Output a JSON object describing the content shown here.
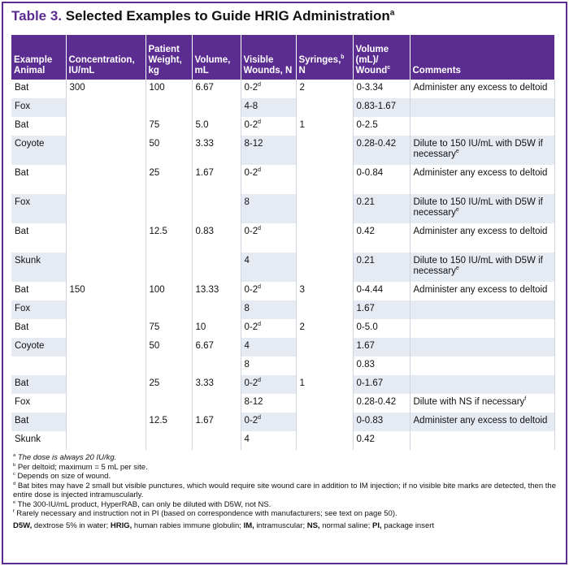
{
  "title": {
    "label": "Table 3.",
    "text": "Selected Examples to Guide HRIG Administration",
    "sup": "a"
  },
  "table": {
    "columns": [
      "animal",
      "concentration",
      "weight",
      "volume",
      "wounds",
      "syringes",
      "vol_wound",
      "comments"
    ],
    "header": [
      {
        "text": "Example Animal"
      },
      {
        "text": "Concentration, IU/mL"
      },
      {
        "text": "Patient Weight, kg"
      },
      {
        "text": "Volume, mL"
      },
      {
        "text": "Visible Wounds, N"
      },
      {
        "text": "Syringes,",
        "sup": "b",
        "text2": "N"
      },
      {
        "text": "Volume (mL)/ Wound",
        "sup": "c"
      },
      {
        "text": "Comments"
      }
    ],
    "rows": [
      {
        "animal": "Bat",
        "concentration": "300",
        "weight": "100",
        "volume": "6.67",
        "wounds": {
          "text": "0-2",
          "sup": "d"
        },
        "syringes": "2",
        "vol_wound": "0-3.34",
        "comments": {
          "text": "Administer any excess to deltoid"
        }
      },
      {
        "animal": "Fox",
        "wounds": "4-8",
        "vol_wound": "0.83-1.67"
      },
      {
        "animal": "Bat",
        "weight": "75",
        "volume": "5.0",
        "wounds": {
          "text": "0-2",
          "sup": "d"
        },
        "syringes": "1",
        "vol_wound": "0-2.5"
      },
      {
        "animal": "Coyote",
        "weight": "50",
        "volume": "3.33",
        "wounds": "8-12",
        "vol_wound": "0.28-0.42",
        "comments": {
          "text": "Dilute to 150 IU/mL with D5W if necessary",
          "sup": "e"
        }
      },
      {
        "animal": "Bat",
        "weight": "25",
        "volume": "1.67",
        "wounds": {
          "text": "0-2",
          "sup": "d"
        },
        "vol_wound": "0-0.84",
        "comments": {
          "text": "Administer any excess to deltoid"
        }
      },
      {
        "animal": "Fox",
        "wounds": "8",
        "vol_wound": "0.21",
        "comments": {
          "text": "Dilute to 150 IU/mL with D5W if necessary",
          "sup": "e"
        }
      },
      {
        "animal": "Bat",
        "weight": "12.5",
        "volume": "0.83",
        "wounds": {
          "text": "0-2",
          "sup": "d"
        },
        "vol_wound": "0.42",
        "comments": {
          "text": "Administer any excess to deltoid"
        }
      },
      {
        "animal": "Skunk",
        "wounds": "4",
        "vol_wound": "0.21",
        "comments": {
          "text": "Dilute to 150 IU/mL with D5W if necessary",
          "sup": "e"
        }
      },
      {
        "animal": "Bat",
        "concentration": "150",
        "weight": "100",
        "volume": "13.33",
        "wounds": {
          "text": "0-2",
          "sup": "d"
        },
        "syringes": "3",
        "vol_wound": "0-4.44",
        "comments": {
          "text": "Administer any excess to deltoid"
        }
      },
      {
        "animal": "Fox",
        "wounds": "8",
        "vol_wound": "1.67"
      },
      {
        "animal": "Bat",
        "weight": "75",
        "volume": "10",
        "wounds": {
          "text": "0-2",
          "sup": "d"
        },
        "syringes": "2",
        "vol_wound": "0-5.0"
      },
      {
        "animal": "Coyote",
        "weight": "50",
        "volume": "6.67",
        "wounds": "4",
        "vol_wound": "1.67"
      },
      {
        "wounds": "8",
        "vol_wound": "0.83"
      },
      {
        "animal": "Bat",
        "weight": "25",
        "volume": "3.33",
        "wounds": {
          "text": "0-2",
          "sup": "d"
        },
        "syringes": "1",
        "vol_wound": "0-1.67"
      },
      {
        "animal": "Fox",
        "wounds": "8-12",
        "vol_wound": "0.28-0.42",
        "comments": {
          "text": "Dilute with NS if necessary",
          "sup": "f"
        }
      },
      {
        "animal": "Bat",
        "weight": "12.5",
        "volume": "1.67",
        "wounds": {
          "text": "0-2",
          "sup": "d"
        },
        "vol_wound": "0-0.83",
        "comments": {
          "text": "Administer any excess to deltoid"
        }
      },
      {
        "animal": "Skunk",
        "wounds": "4",
        "vol_wound": "0.42"
      }
    ]
  },
  "footnotes": [
    {
      "mark": "a",
      "text": "The dose is always 20 IU/kg."
    },
    {
      "mark": "b",
      "text": "Per deltoid; maximum = 5 mL per site."
    },
    {
      "mark": "c",
      "text": "Depends on size of wound."
    },
    {
      "mark": "d",
      "text": "Bat bites may have 2 small but visible punctures, which would require site wound care in addition to IM injection; if no visible bite marks are detected, then the entire dose is injected intramuscularly."
    },
    {
      "mark": "e",
      "text": "The 300-IU/mL product, HyperRAB, can only be diluted with D5W, not NS."
    },
    {
      "mark": "f",
      "text": "Rarely necessary and instruction not in PI (based on correspondence with manufacturers; see text on page 50)."
    }
  ],
  "abbreviations": [
    {
      "term": "D5W,",
      "def": "dextrose 5% in water;"
    },
    {
      "term": "HRIG,",
      "def": "human rabies immune globulin;"
    },
    {
      "term": "IM,",
      "def": "intramuscular;"
    },
    {
      "term": "NS,",
      "def": "normal saline;"
    },
    {
      "term": "PI,",
      "def": "package insert"
    }
  ]
}
